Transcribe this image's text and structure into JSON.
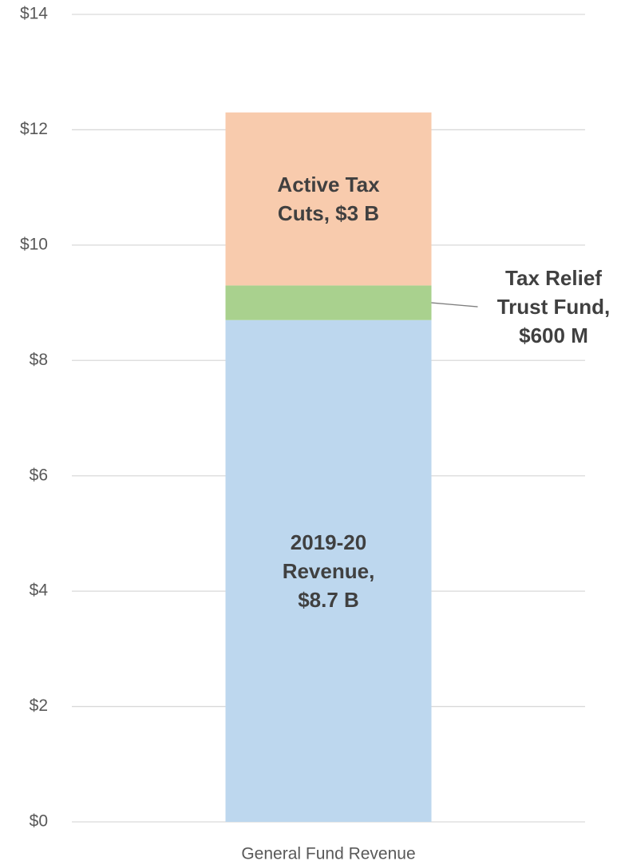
{
  "chart_data": {
    "type": "stacked-bar",
    "categories": [
      "General Fund Revenue"
    ],
    "series": [
      {
        "color": "#bdd7ee",
        "values": [
          8.7
        ],
        "value_labels": [
          "2019-20 Revenue, $8.7 B"
        ]
      },
      {
        "color": "#a9d18e",
        "values": [
          0.6
        ],
        "value_labels": [
          "Tax Relief Trust Fund, $600 M"
        ]
      },
      {
        "color": "#f8cbad",
        "values": [
          3
        ],
        "value_labels": [
          "Active Tax Cuts, $3 B"
        ]
      }
    ],
    "ylim": [
      0,
      14
    ],
    "yticks": [
      {
        "value": 0,
        "label": "$0"
      },
      {
        "value": 2,
        "label": "$2"
      },
      {
        "value": 4,
        "label": "$4"
      },
      {
        "value": 6,
        "label": "$6"
      },
      {
        "value": 8,
        "label": "$8"
      },
      {
        "value": 10,
        "label": "$10"
      },
      {
        "value": 12,
        "label": "$12"
      },
      {
        "value": 14,
        "label": "$14"
      }
    ],
    "grid": true
  }
}
